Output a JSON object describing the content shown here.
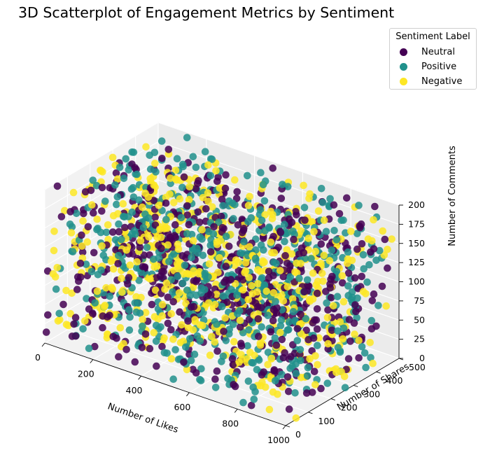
{
  "chart_data": {
    "type": "scatter",
    "title": "3D Scatterplot of Engagement Metrics by Sentiment",
    "xlabel": "Number of Likes",
    "ylabel": "Number of Shares",
    "zlabel": "Number of Comments",
    "xlim": [
      0,
      1000
    ],
    "ylim": [
      0,
      500
    ],
    "zlim": [
      0,
      200
    ],
    "xticks": [
      "0",
      "200",
      "400",
      "600",
      "800",
      "1000"
    ],
    "yticks": [
      "0",
      "100",
      "200",
      "300",
      "400",
      "500"
    ],
    "zticks": [
      "0",
      "25",
      "50",
      "75",
      "100",
      "125",
      "150",
      "175",
      "200"
    ],
    "grid": true,
    "legend": {
      "title": "Sentiment Label",
      "position": "top-right"
    },
    "series": [
      {
        "name": "Neutral",
        "color": "#440154",
        "count": 600
      },
      {
        "name": "Positive",
        "color": "#21918c",
        "count": 600
      },
      {
        "name": "Negative",
        "color": "#fde725",
        "count": 600
      }
    ],
    "points_note": "Approximately uniform random scatter of points over x 0-1000, y 0-500, z 0-200 for each series"
  }
}
